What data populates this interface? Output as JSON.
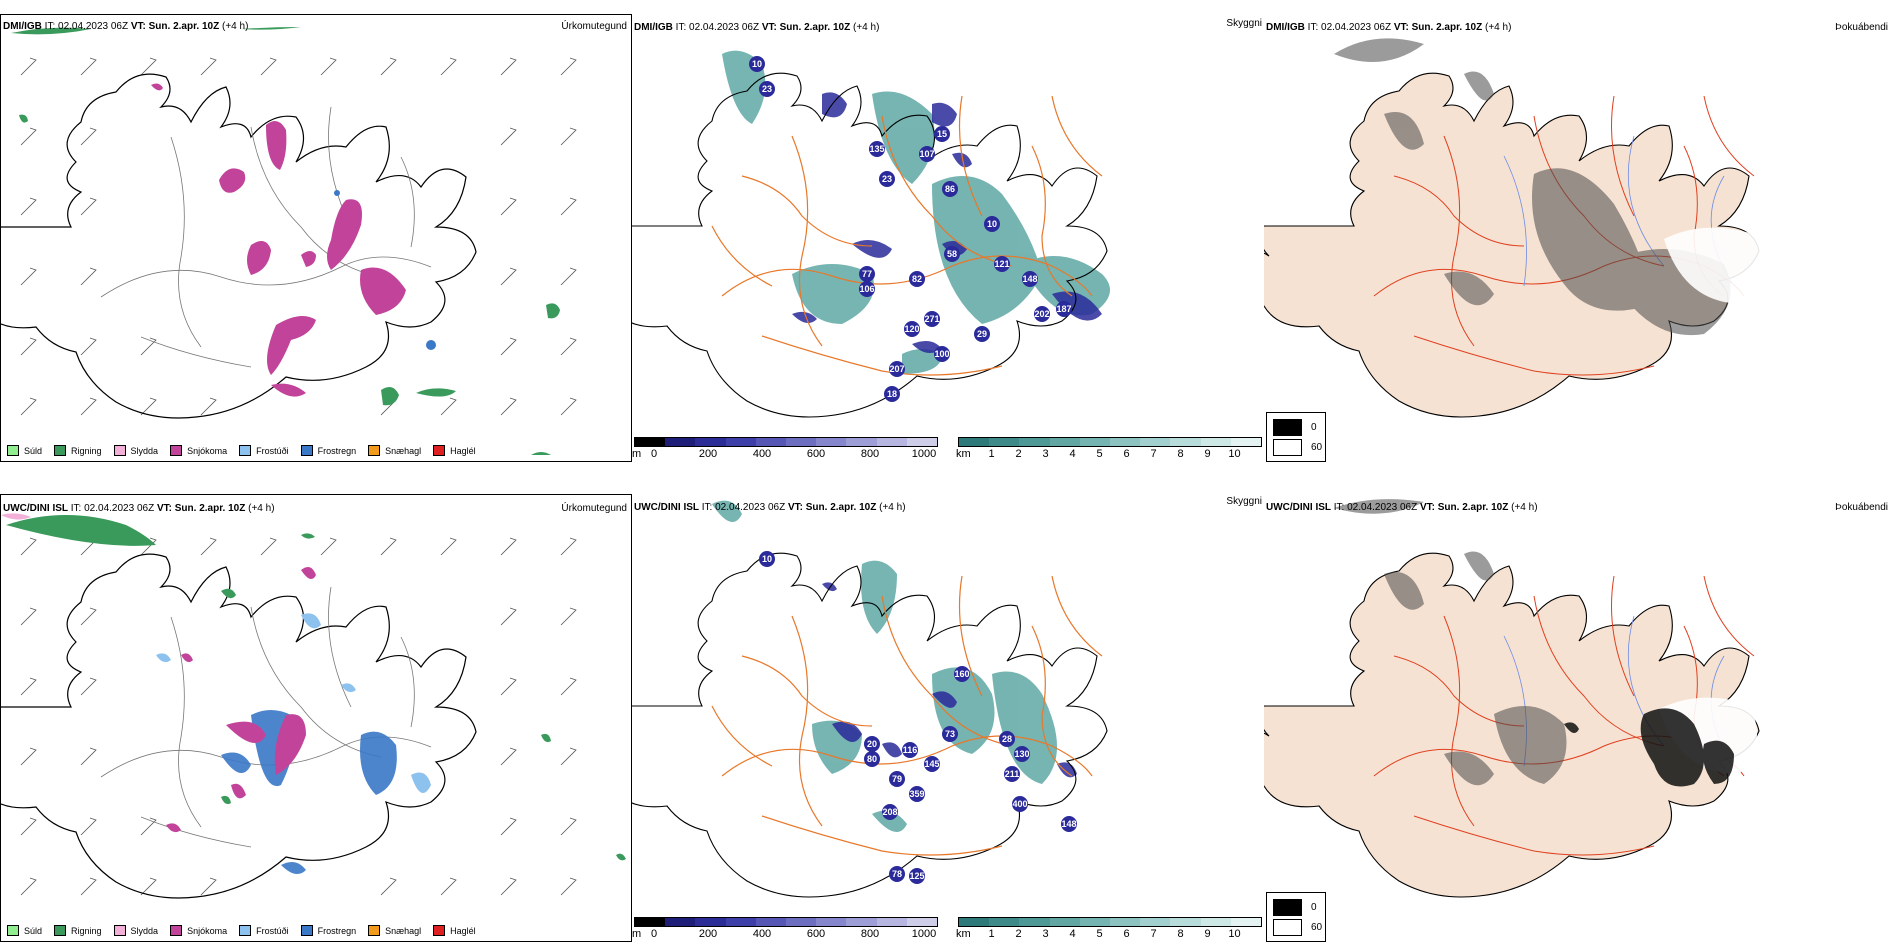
{
  "panels": {
    "precip_dmi": {
      "model": "DMI/IGB",
      "it_label": "IT:",
      "it_value": "02.04.2023 06Z",
      "vt_label": "VT:",
      "vt_value": "Sun. 2.apr. 10Z",
      "lead": "(+4 h)",
      "right_label": "Úrkomutegund"
    },
    "vis_dmi": {
      "model": "DMI/IGB",
      "it_label": "IT:",
      "it_value": "02.04.2023 06Z",
      "vt_label": "VT:",
      "vt_value": "Sun. 2.apr. 10Z",
      "lead": "(+4 h)",
      "right_label": "Skyggni"
    },
    "fog_dmi": {
      "model": "DMI/IGB",
      "it_label": "IT:",
      "it_value": "02.04.2023 06Z",
      "vt_label": "VT:",
      "vt_value": "Sun. 2.apr. 10Z",
      "lead": "(+4 h)",
      "right_label": "Þokuábendi"
    },
    "precip_uwc": {
      "model": "UWC/DINI ISL",
      "it_label": "IT:",
      "it_value": "02.04.2023 06Z",
      "vt_label": "VT:",
      "vt_value": "Sun. 2.apr. 10Z",
      "lead": "(+4 h)",
      "right_label": "Úrkomutegund"
    },
    "vis_uwc": {
      "model": "UWC/DINI ISL",
      "it_label": "IT:",
      "it_value": "02.04.2023 06Z",
      "vt_label": "VT:",
      "vt_value": "Sun. 2.apr. 10Z",
      "lead": "(+4 h)",
      "right_label": "Skyggni"
    },
    "fog_uwc": {
      "model": "UWC/DINI ISL",
      "it_label": "IT:",
      "it_value": "02.04.2023 06Z",
      "vt_label": "VT:",
      "vt_value": "Sun. 2.apr. 10Z",
      "lead": "(+4 h)",
      "right_label": "Þokuábendi"
    }
  },
  "precip_legend": [
    {
      "label": "Súld",
      "color": "#90ee90"
    },
    {
      "label": "Rigning",
      "color": "#3a9a5c"
    },
    {
      "label": "Slydda",
      "color": "#f2b0d8"
    },
    {
      "label": "Snjókoma",
      "color": "#c2449a"
    },
    {
      "label": "Frostúði",
      "color": "#8ec2ee"
    },
    {
      "label": "Frostregn",
      "color": "#3a78c8"
    },
    {
      "label": "Snæhagl",
      "color": "#f29a1a"
    },
    {
      "label": "Haglél",
      "color": "#e02020"
    }
  ],
  "vis_scale_m": {
    "unit": "m",
    "ticks": [
      "0",
      "200",
      "400",
      "600",
      "800",
      "1000"
    ],
    "colors": [
      "#000000",
      "#1e1e78",
      "#2c2c96",
      "#3e3ea8",
      "#5656b4",
      "#6e6ec0",
      "#8686cc",
      "#9e9ed6",
      "#b6b6e0",
      "#cecee8"
    ]
  },
  "vis_scale_km": {
    "unit": "km",
    "ticks": [
      "1",
      "2",
      "3",
      "4",
      "5",
      "6",
      "7",
      "8",
      "9",
      "10"
    ],
    "colors": [
      "#2e7a7a",
      "#3e8a88",
      "#4e9896",
      "#62a6a4",
      "#76b4b2",
      "#8cc2c0",
      "#a2d0ce",
      "#b8dcda",
      "#cee8e6",
      "#e4f2f2"
    ]
  },
  "fog_key": [
    {
      "value": "0",
      "color": "#000000"
    },
    {
      "value": "60",
      "color": "#ffffff"
    }
  ],
  "vis_labels_top": [
    "10",
    "23",
    "15",
    "135",
    "107",
    "23",
    "86",
    "58",
    "121",
    "77",
    "82",
    "148",
    "106",
    "187",
    "271",
    "202",
    "120",
    "100",
    "207",
    "18",
    "29",
    "10"
  ],
  "vis_labels_bottom": [
    "10",
    "160",
    "73",
    "20",
    "80",
    "116",
    "145",
    "28",
    "130",
    "211",
    "79",
    "359",
    "400",
    "208",
    "148",
    "78",
    "125"
  ],
  "colors": {
    "coast": "#000000",
    "roads": "#e8782a",
    "land_tint": "#f6e2d2",
    "red_roads": "#e04020",
    "rivers": "#6c8ce8"
  }
}
